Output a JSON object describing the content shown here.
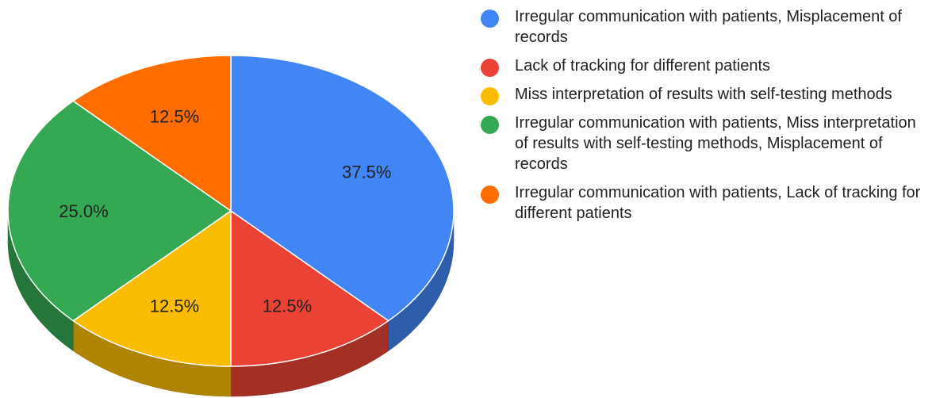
{
  "chart_data": {
    "type": "pie",
    "style": "3d",
    "legend_position": "right",
    "slices": [
      {
        "label": "Irregular communication with patients, Misplacement of records",
        "value": 37.5,
        "display": "37.5%",
        "color": "#4285F4"
      },
      {
        "label": "Lack of tracking for different patients",
        "value": 12.5,
        "display": "12.5%",
        "color": "#EA4335"
      },
      {
        "label": "Miss interpretation of results with self-testing methods",
        "value": 12.5,
        "display": "12.5%",
        "color": "#FBBC04"
      },
      {
        "label": "Irregular communication with patients, Miss interpretation of results with self-testing methods, Misplacement of records",
        "value": 25.0,
        "display": "25.0%",
        "color": "#34A853"
      },
      {
        "label": "Irregular communication with patients, Lack of tracking for different patients",
        "value": 12.5,
        "display": "12.5%",
        "color": "#FF6D01"
      }
    ]
  }
}
